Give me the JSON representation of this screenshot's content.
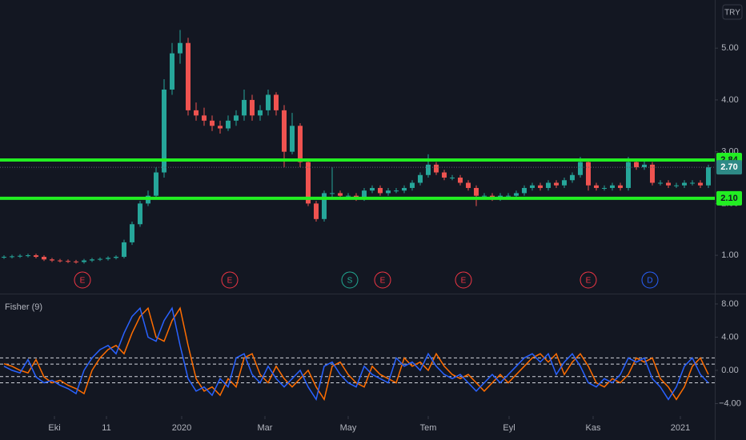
{
  "chart_data": [
    {
      "type": "candlestick",
      "currency": "TRY",
      "open": [
        0.96,
        0.97,
        0.98,
        0.99,
        1,
        0.97,
        0.92,
        0.9,
        0.89,
        0.88,
        0.87,
        0.9,
        0.92,
        0.93,
        0.95,
        0.97,
        1.25,
        1.6,
        2,
        2.15,
        2.6,
        4.2,
        4.9,
        5.1,
        3.8,
        3.7,
        3.6,
        3.5,
        3.45,
        3.6,
        3.7,
        4,
        3.7,
        3.8,
        4.1,
        3.8,
        3,
        3.5,
        2.8,
        2,
        1.7,
        2.2,
        2.2,
        2.15,
        2.15,
        2.1,
        2.25,
        2.3,
        2.2,
        2.25,
        2.25,
        2.3,
        2.4,
        2.55,
        2.75,
        2.6,
        2.5,
        2.5,
        2.4,
        2.3,
        2.15,
        2.15,
        2.1,
        2.15,
        2.15,
        2.2,
        2.3,
        2.35,
        2.3,
        2.4,
        2.35,
        2.45,
        2.55,
        2.8,
        2.35,
        2.3,
        2.3,
        2.35,
        2.3,
        2.8,
        2.7,
        2.75,
        2.4,
        2.4,
        2.35,
        2.35,
        2.4,
        2.4,
        2.35
      ],
      "high": [
        1,
        1.01,
        1.02,
        1.03,
        1.03,
        1,
        0.95,
        0.93,
        0.92,
        0.91,
        0.93,
        0.95,
        0.96,
        0.98,
        1,
        1.3,
        1.65,
        2.05,
        2.25,
        2.7,
        4.4,
        5.1,
        5.35,
        5.2,
        3.95,
        3.85,
        3.7,
        3.6,
        3.7,
        3.8,
        4.2,
        4.1,
        3.9,
        4.2,
        4.15,
        3.9,
        3.75,
        3.55,
        2.85,
        2.05,
        2.25,
        2.7,
        2.25,
        2.2,
        2.2,
        2.3,
        2.35,
        2.35,
        2.3,
        2.3,
        2.35,
        2.45,
        2.6,
        2.95,
        2.8,
        2.65,
        2.55,
        2.55,
        2.45,
        2.35,
        2.2,
        2.2,
        2.2,
        2.2,
        2.25,
        2.35,
        2.4,
        2.4,
        2.45,
        2.45,
        2.5,
        2.6,
        2.9,
        2.85,
        2.4,
        2.35,
        2.4,
        2.4,
        2.9,
        2.85,
        2.85,
        2.8,
        2.45,
        2.45,
        2.4,
        2.45,
        2.45,
        2.45,
        2.75
      ],
      "low": [
        0.93,
        0.94,
        0.95,
        0.96,
        0.94,
        0.89,
        0.87,
        0.86,
        0.85,
        0.84,
        0.84,
        0.87,
        0.89,
        0.9,
        0.92,
        0.94,
        1.2,
        1.55,
        1.95,
        2.1,
        2.5,
        4.1,
        4.7,
        3.7,
        3.6,
        3.5,
        3.4,
        3.35,
        3.4,
        3.5,
        3.6,
        3.6,
        3.6,
        3.7,
        3.7,
        2.7,
        2.95,
        2.7,
        1.95,
        1.65,
        1.65,
        2.1,
        2.1,
        2.1,
        2.05,
        2.05,
        2.2,
        2.15,
        2.15,
        2.2,
        2.2,
        2.25,
        2.35,
        2.5,
        2.55,
        2.45,
        2.45,
        2.35,
        2.25,
        1.95,
        2.1,
        2.05,
        2.05,
        2.1,
        2.1,
        2.15,
        2.25,
        2.25,
        2.25,
        2.3,
        2.3,
        2.4,
        2.5,
        2.25,
        2.25,
        2.25,
        2.25,
        2.25,
        2.25,
        2.65,
        2.65,
        2.35,
        2.35,
        2.3,
        2.3,
        2.3,
        2.35,
        2.3,
        2.3
      ],
      "close": [
        0.97,
        0.98,
        0.99,
        1,
        0.97,
        0.92,
        0.9,
        0.89,
        0.88,
        0.87,
        0.9,
        0.92,
        0.93,
        0.95,
        0.97,
        1.25,
        1.6,
        2,
        2.15,
        2.6,
        4.2,
        4.9,
        5.1,
        3.8,
        3.7,
        3.6,
        3.5,
        3.45,
        3.6,
        3.7,
        4,
        3.7,
        3.8,
        4.1,
        3.8,
        3,
        3.5,
        2.8,
        2,
        1.7,
        2.2,
        2.2,
        2.15,
        2.15,
        2.1,
        2.25,
        2.3,
        2.2,
        2.25,
        2.25,
        2.3,
        2.4,
        2.55,
        2.75,
        2.6,
        2.5,
        2.5,
        2.4,
        2.3,
        2.15,
        2.15,
        2.1,
        2.15,
        2.15,
        2.2,
        2.3,
        2.35,
        2.3,
        2.4,
        2.35,
        2.45,
        2.55,
        2.8,
        2.35,
        2.3,
        2.3,
        2.35,
        2.3,
        2.8,
        2.7,
        2.75,
        2.4,
        2.4,
        2.35,
        2.35,
        2.4,
        2.4,
        2.35,
        2.7
      ],
      "up_color": "#26a69a",
      "down_color": "#ef5350",
      "ylim": [
        0.26,
        5.93
      ],
      "yticks": [
        {
          "value": 1,
          "label": "1.00"
        },
        {
          "value": 2,
          "label": "2.00"
        },
        {
          "value": 3,
          "label": "3.00"
        },
        {
          "value": 4,
          "label": "4.00"
        },
        {
          "value": 5,
          "label": "5.00"
        }
      ],
      "xlim": [
        -0.5,
        88.8
      ],
      "xticks": [
        {
          "value": 6.3,
          "label": "Eki"
        },
        {
          "value": 12.8,
          "label": "11"
        },
        {
          "value": 22.2,
          "label": "2020"
        },
        {
          "value": 32.6,
          "label": "Mar"
        },
        {
          "value": 43,
          "label": "May"
        },
        {
          "value": 53,
          "label": "Tem"
        },
        {
          "value": 63.1,
          "label": "Eyl"
        },
        {
          "value": 73.6,
          "label": "Kas"
        },
        {
          "value": 84.5,
          "label": "2021"
        }
      ],
      "hlines": [
        {
          "value": 2.84,
          "label": "2.84",
          "color": "#22ee22"
        },
        {
          "value": 2.1,
          "label": "2.10",
          "color": "#22ee22"
        }
      ],
      "last": {
        "value": 2.7,
        "label": "2.70",
        "color": "#2e8a86"
      },
      "events": [
        {
          "x": 9.8,
          "letter": "E",
          "color": "#f23645"
        },
        {
          "x": 28.2,
          "letter": "E",
          "color": "#f23645"
        },
        {
          "x": 43.2,
          "letter": "S",
          "color": "#22ab94"
        },
        {
          "x": 47.3,
          "letter": "E",
          "color": "#f23645"
        },
        {
          "x": 57.4,
          "letter": "E",
          "color": "#f23645"
        },
        {
          "x": 73,
          "letter": "E",
          "color": "#f23645"
        },
        {
          "x": 80.7,
          "letter": "D",
          "color": "#2962ff"
        }
      ]
    },
    {
      "type": "line",
      "title": "Fisher (9)",
      "series": [
        {
          "color": "#ff6d00",
          "values": [
            0.8,
            0.5,
            0,
            -0.3,
            1.3,
            -0.8,
            -1.5,
            -1.2,
            -1.8,
            -2.2,
            -2.8,
            0,
            1.5,
            2.5,
            3,
            2,
            4.5,
            6.5,
            7.5,
            4,
            3.5,
            6,
            7.5,
            3,
            -1,
            -2.5,
            -2,
            -3,
            -1,
            -2,
            1.5,
            2,
            -0.5,
            -1.5,
            0.5,
            -1,
            -2,
            -1,
            0,
            -2,
            -3.5,
            0.5,
            1,
            -0.5,
            -1.5,
            -2,
            0.5,
            -0.5,
            -1,
            -1.5,
            1.5,
            0.5,
            1,
            0,
            2,
            0.5,
            -0.5,
            -1,
            -0.5,
            -1.5,
            -2.5,
            -1.5,
            -0.5,
            -1.5,
            -0.5,
            0.5,
            1.5,
            2,
            1,
            2,
            -0.5,
            1,
            2,
            0.5,
            -1.5,
            -2,
            -1,
            -1.5,
            -0.5,
            1.5,
            1,
            1.5,
            -1,
            -2,
            -3.5,
            -2,
            0.5,
            1.5,
            -0.5
          ]
        },
        {
          "color": "#2962ff",
          "values": [
            0.5,
            0,
            -0.3,
            1.3,
            -0.8,
            -1.5,
            -1.2,
            -1.8,
            -2.2,
            -2.8,
            0,
            1.5,
            2.5,
            3,
            2,
            4.5,
            6.5,
            7.5,
            4,
            3.5,
            6,
            7.5,
            3,
            -1,
            -2.5,
            -2,
            -3,
            -1,
            -2,
            1.5,
            2,
            -0.5,
            -1.5,
            0.5,
            -1,
            -2,
            -1,
            0,
            -2,
            -3.5,
            0.5,
            1,
            -0.5,
            -1.5,
            -2,
            0.5,
            -0.5,
            -1,
            -1.5,
            1.5,
            0.5,
            1,
            0,
            2,
            0.5,
            -0.5,
            -1,
            -0.5,
            -1.5,
            -2.5,
            -1.5,
            -0.5,
            -1.5,
            -0.5,
            0.5,
            1.5,
            2,
            1,
            2,
            -0.5,
            1,
            2,
            0.5,
            -1.5,
            -2,
            -1,
            -1.5,
            -0.5,
            1.5,
            1,
            1.5,
            -1,
            -2,
            -3.5,
            -2,
            0.5,
            1.5,
            -0.5,
            -1.5
          ]
        }
      ],
      "ylim": [
        -5.5,
        9.25
      ],
      "yticks": [
        {
          "value": 8,
          "label": "8.00"
        },
        {
          "value": 4,
          "label": "4.00"
        },
        {
          "value": 0,
          "label": "0.00"
        },
        {
          "value": -4,
          "label": "−4.00"
        }
      ],
      "levels": [
        1.5,
        0.75,
        -0.75,
        -1.5
      ]
    }
  ]
}
